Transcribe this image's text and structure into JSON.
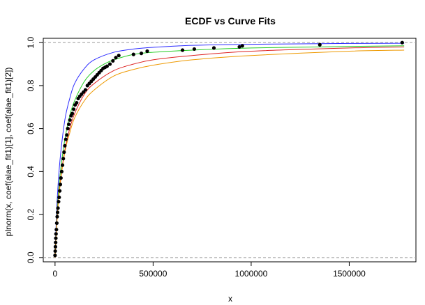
{
  "chart_data": {
    "type": "line",
    "title": "ECDF vs Curve Fits",
    "xlabel": "x",
    "ylabel": "plnorm(x, coef(alae_fit1)[1], coef(alae_fit1)[2])",
    "xlim": [
      -60000,
      1840000
    ],
    "ylim": [
      -0.02,
      1.02
    ],
    "xticks": [
      0,
      500000,
      1000000,
      1500000
    ],
    "xtick_labels": [
      "0",
      "500000",
      "1000000",
      "1500000"
    ],
    "yticks": [
      0.0,
      0.2,
      0.4,
      0.6,
      0.8,
      1.0
    ],
    "ytick_labels": [
      "0.0",
      "0.2",
      "0.4",
      "0.6",
      "0.8",
      "1.0"
    ],
    "reference_lines": [
      0,
      1
    ],
    "grid": false,
    "legend": "none",
    "ecdf_points": {
      "color": "#000000",
      "x": [
        0,
        1000,
        2000,
        3000,
        4000,
        5000,
        7000,
        9000,
        11000,
        13000,
        15000,
        18000,
        21000,
        24000,
        27000,
        30000,
        34000,
        38000,
        42000,
        46000,
        50000,
        55000,
        60000,
        65000,
        70000,
        76000,
        82000,
        88000,
        95000,
        102000,
        110000,
        118000,
        126000,
        135000,
        145000,
        155000,
        165000,
        175000,
        185000,
        195000,
        205000,
        215000,
        225000,
        235000,
        245000,
        255000,
        265000,
        280000,
        295000,
        310000,
        325000,
        400000,
        440000,
        470000,
        650000,
        710000,
        810000,
        940000,
        955000,
        1350000,
        1770000
      ],
      "y": [
        0.01,
        0.03,
        0.05,
        0.07,
        0.09,
        0.11,
        0.13,
        0.16,
        0.19,
        0.21,
        0.23,
        0.26,
        0.28,
        0.31,
        0.34,
        0.37,
        0.4,
        0.43,
        0.46,
        0.49,
        0.52,
        0.55,
        0.57,
        0.6,
        0.62,
        0.64,
        0.66,
        0.67,
        0.69,
        0.71,
        0.72,
        0.74,
        0.75,
        0.76,
        0.77,
        0.78,
        0.8,
        0.81,
        0.82,
        0.83,
        0.84,
        0.85,
        0.86,
        0.87,
        0.88,
        0.885,
        0.89,
        0.9,
        0.915,
        0.93,
        0.94,
        0.945,
        0.95,
        0.96,
        0.965,
        0.97,
        0.975,
        0.98,
        0.985,
        0.99,
        1.0
      ]
    },
    "series": [
      {
        "color": "#2b2bff",
        "x": [
          0,
          10000,
          25000,
          50000,
          75000,
          100000,
          150000,
          200000,
          300000,
          400000,
          500000,
          700000,
          1000000,
          1500000,
          1780000
        ],
        "y": [
          0,
          0.25,
          0.45,
          0.64,
          0.74,
          0.81,
          0.88,
          0.92,
          0.955,
          0.97,
          0.978,
          0.987,
          0.992,
          0.996,
          0.997
        ]
      },
      {
        "color": "#22cc22",
        "x": [
          0,
          10000,
          25000,
          50000,
          75000,
          100000,
          150000,
          200000,
          250000,
          300000,
          400000,
          500000,
          700000,
          1000000,
          1500000,
          1780000
        ],
        "y": [
          0,
          0.2,
          0.38,
          0.55,
          0.66,
          0.73,
          0.82,
          0.87,
          0.9,
          0.92,
          0.945,
          0.955,
          0.965,
          0.975,
          0.982,
          0.985
        ]
      },
      {
        "color": "#dd2222",
        "x": [
          0,
          10000,
          25000,
          50000,
          75000,
          100000,
          150000,
          200000,
          300000,
          400000,
          500000,
          700000,
          1000000,
          1500000,
          1780000
        ],
        "y": [
          0,
          0.18,
          0.34,
          0.5,
          0.6,
          0.67,
          0.76,
          0.81,
          0.87,
          0.9,
          0.92,
          0.94,
          0.96,
          0.975,
          0.98
        ]
      },
      {
        "color": "#ee9900",
        "x": [
          0,
          10000,
          25000,
          50000,
          75000,
          100000,
          150000,
          200000,
          300000,
          400000,
          500000,
          700000,
          1000000,
          1500000,
          1780000
        ],
        "y": [
          0,
          0.17,
          0.33,
          0.49,
          0.58,
          0.65,
          0.73,
          0.78,
          0.845,
          0.875,
          0.895,
          0.92,
          0.94,
          0.96,
          0.965
        ]
      }
    ]
  }
}
